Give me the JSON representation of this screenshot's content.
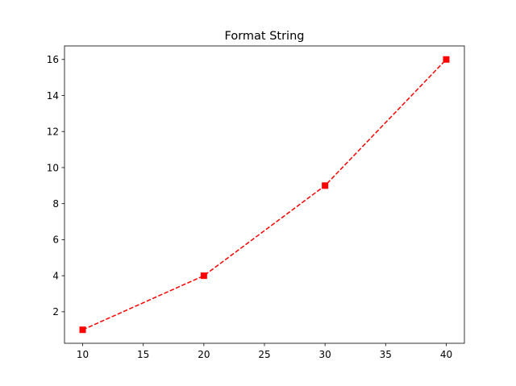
{
  "chart_data": {
    "type": "line",
    "title": "Format String",
    "xlabel": "",
    "ylabel": "",
    "x": [
      10,
      20,
      30,
      40
    ],
    "series": [
      {
        "values": [
          1,
          4,
          9,
          16
        ],
        "color": "#ff0000",
        "line_style": "dashed",
        "marker": "square"
      }
    ],
    "xlim": [
      8.5,
      41.5
    ],
    "ylim": [
      0.25,
      16.75
    ],
    "x_ticks": [
      10,
      15,
      20,
      25,
      30,
      35,
      40
    ],
    "y_ticks": [
      2,
      4,
      6,
      8,
      10,
      12,
      14,
      16
    ],
    "grid": false,
    "legend": "none"
  }
}
